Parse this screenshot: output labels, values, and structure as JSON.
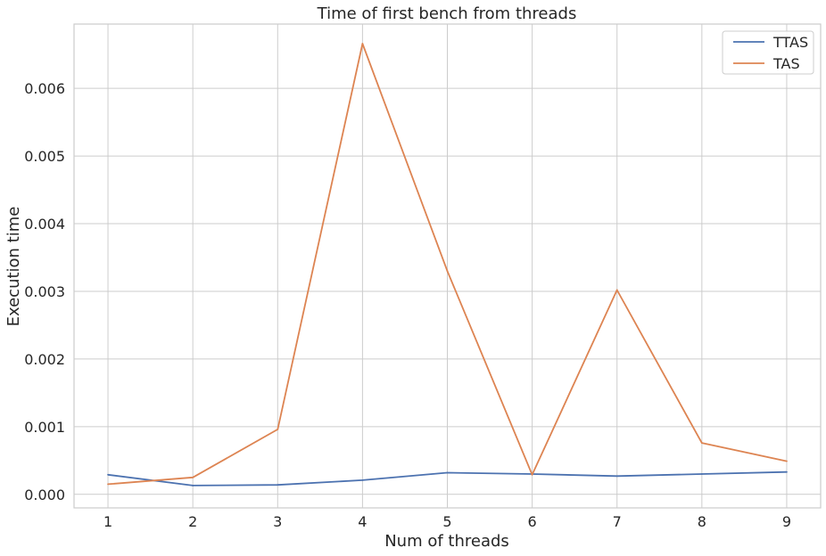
{
  "chart_data": {
    "type": "line",
    "title": "Time of first bench from threads",
    "xlabel": "Num of threads",
    "ylabel": "Execution time",
    "x": [
      1,
      2,
      3,
      4,
      5,
      6,
      7,
      8,
      9
    ],
    "x_ticks": [
      "1",
      "2",
      "3",
      "4",
      "5",
      "6",
      "7",
      "8",
      "9"
    ],
    "y_ticks": [
      "0.000",
      "0.001",
      "0.002",
      "0.003",
      "0.004",
      "0.005",
      "0.006"
    ],
    "y_tick_values": [
      0,
      0.001,
      0.002,
      0.003,
      0.004,
      0.005,
      0.006
    ],
    "xlim": [
      0.6,
      9.4
    ],
    "ylim": [
      -0.0002,
      0.00695
    ],
    "grid": true,
    "legend_position": "top-right",
    "series": [
      {
        "name": "TTAS",
        "color": "#4c72b0",
        "values": [
          0.00029,
          0.00013,
          0.00014,
          0.00021,
          0.00032,
          0.0003,
          0.00027,
          0.0003,
          0.00033
        ]
      },
      {
        "name": "TAS",
        "color": "#dd8452",
        "values": [
          0.00015,
          0.00025,
          0.00096,
          0.00666,
          0.0033,
          0.00029,
          0.00302,
          0.00076,
          0.00049
        ]
      }
    ]
  }
}
